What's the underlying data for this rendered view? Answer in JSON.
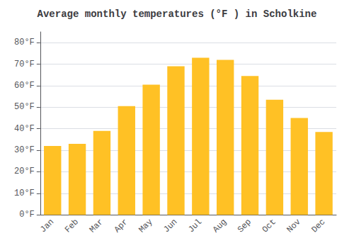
{
  "chart_data": {
    "type": "bar",
    "title": "Average monthly temperatures (°F ) in Scholkine",
    "categories": [
      "Jan",
      "Feb",
      "Mar",
      "Apr",
      "May",
      "Jun",
      "Jul",
      "Aug",
      "Sep",
      "Oct",
      "Nov",
      "Dec"
    ],
    "values": [
      32,
      33,
      39,
      50.5,
      60.5,
      69,
      73,
      72,
      64.5,
      53.5,
      45,
      38.5
    ],
    "color": "#FFC125",
    "ylim": [
      0,
      85
    ],
    "yticks": [
      {
        "value": 0,
        "label": "0°F"
      },
      {
        "value": 10,
        "label": "10°F"
      },
      {
        "value": 20,
        "label": "20°F"
      },
      {
        "value": 30,
        "label": "30°F"
      },
      {
        "value": 40,
        "label": "40°F"
      },
      {
        "value": 50,
        "label": "50°F"
      },
      {
        "value": 60,
        "label": "60°F"
      },
      {
        "value": 70,
        "label": "70°F"
      },
      {
        "value": 80,
        "label": "80°F"
      }
    ],
    "grid": true
  }
}
